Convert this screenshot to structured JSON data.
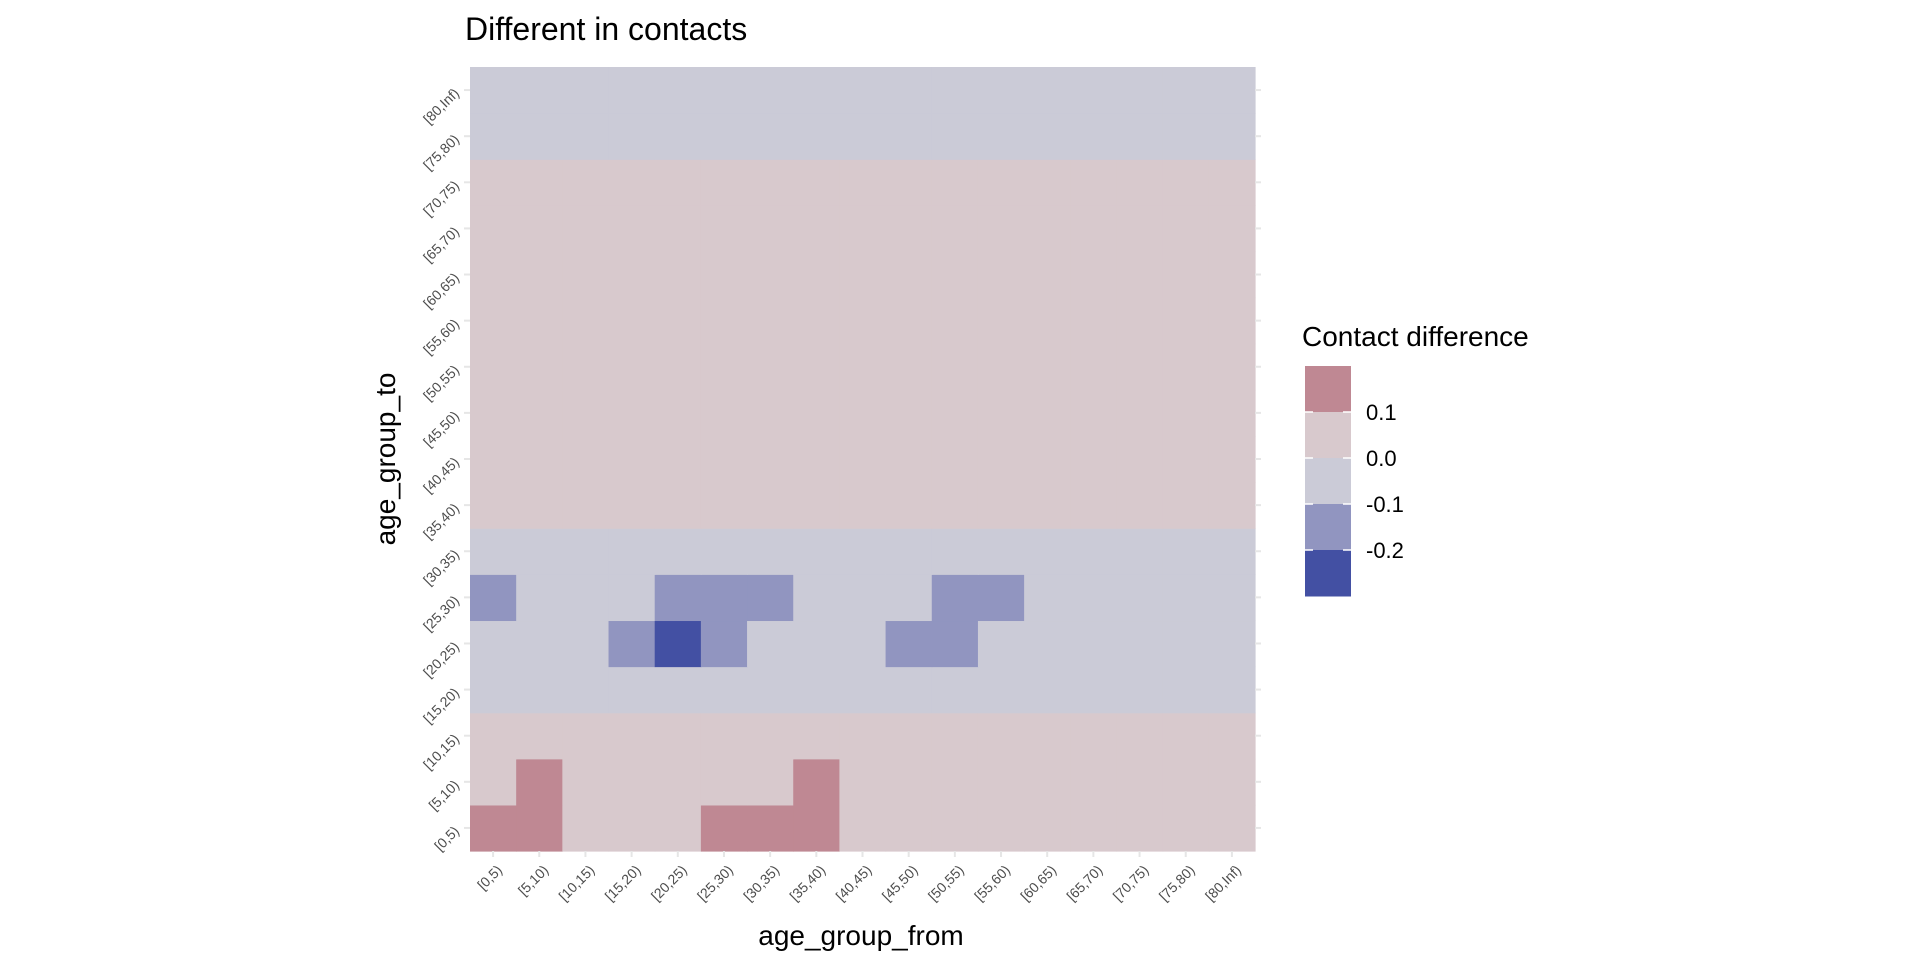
{
  "chart_data": {
    "type": "heatmap",
    "title": "Different in contacts",
    "xlabel": "age_group_from",
    "ylabel": "age_group_to",
    "categories_x": [
      "[0,5)",
      "[5,10)",
      "[10,15)",
      "[15,20)",
      "[20,25)",
      "[25,30)",
      "[30,35)",
      "[35,40)",
      "[40,45)",
      "[45,50)",
      "[50,55)",
      "[55,60)",
      "[60,65)",
      "[65,70)",
      "[70,75)",
      "[75,80)",
      "[80,Inf)"
    ],
    "categories_y": [
      "[0,5)",
      "[5,10)",
      "[10,15)",
      "[15,20)",
      "[20,25)",
      "[25,30)",
      "[30,35)",
      "[35,40)",
      "[40,45)",
      "[45,50)",
      "[50,55)",
      "[55,60)",
      "[60,65)",
      "[65,70)",
      "[70,75)",
      "[75,80)",
      "[80,Inf)"
    ],
    "values": [
      [
        0.15,
        0.15,
        0.05,
        0.05,
        0.05,
        0.15,
        0.15,
        0.15,
        0.05,
        0.05,
        0.05,
        0.05,
        0.05,
        0.05,
        0.05,
        0.05,
        0.05
      ],
      [
        0.05,
        0.15,
        0.05,
        0.05,
        0.05,
        0.05,
        0.05,
        0.15,
        0.05,
        0.05,
        0.05,
        0.05,
        0.05,
        0.05,
        0.05,
        0.05,
        0.05
      ],
      [
        0.05,
        0.05,
        0.05,
        0.05,
        0.05,
        0.05,
        0.05,
        0.05,
        0.05,
        0.05,
        0.05,
        0.05,
        0.05,
        0.05,
        0.05,
        0.05,
        0.05
      ],
      [
        -0.05,
        -0.05,
        -0.05,
        -0.05,
        -0.05,
        -0.05,
        -0.05,
        -0.05,
        -0.05,
        -0.05,
        -0.05,
        -0.05,
        -0.05,
        -0.05,
        -0.05,
        -0.05,
        -0.05
      ],
      [
        -0.05,
        -0.05,
        -0.05,
        -0.15,
        -0.25,
        -0.15,
        -0.05,
        -0.05,
        -0.05,
        -0.15,
        -0.15,
        -0.05,
        -0.05,
        -0.05,
        -0.05,
        -0.05,
        -0.05
      ],
      [
        -0.15,
        -0.05,
        -0.05,
        -0.05,
        -0.15,
        -0.15,
        -0.15,
        -0.05,
        -0.05,
        -0.05,
        -0.15,
        -0.15,
        -0.05,
        -0.05,
        -0.05,
        -0.05,
        -0.05
      ],
      [
        -0.05,
        -0.05,
        -0.05,
        -0.05,
        -0.05,
        -0.05,
        -0.05,
        -0.05,
        -0.05,
        -0.05,
        -0.05,
        -0.05,
        -0.05,
        -0.05,
        -0.05,
        -0.05,
        -0.05
      ],
      [
        0.05,
        0.05,
        0.05,
        0.05,
        0.05,
        0.05,
        0.05,
        0.05,
        0.05,
        0.05,
        0.05,
        0.05,
        0.05,
        0.05,
        0.05,
        0.05,
        0.05
      ],
      [
        0.05,
        0.05,
        0.05,
        0.05,
        0.05,
        0.05,
        0.05,
        0.05,
        0.05,
        0.05,
        0.05,
        0.05,
        0.05,
        0.05,
        0.05,
        0.05,
        0.05
      ],
      [
        0.05,
        0.05,
        0.05,
        0.05,
        0.05,
        0.05,
        0.05,
        0.05,
        0.05,
        0.05,
        0.05,
        0.05,
        0.05,
        0.05,
        0.05,
        0.05,
        0.05
      ],
      [
        0.05,
        0.05,
        0.05,
        0.05,
        0.05,
        0.05,
        0.05,
        0.05,
        0.05,
        0.05,
        0.05,
        0.05,
        0.05,
        0.05,
        0.05,
        0.05,
        0.05
      ],
      [
        0.05,
        0.05,
        0.05,
        0.05,
        0.05,
        0.05,
        0.05,
        0.05,
        0.05,
        0.05,
        0.05,
        0.05,
        0.05,
        0.05,
        0.05,
        0.05,
        0.05
      ],
      [
        0.05,
        0.05,
        0.05,
        0.05,
        0.05,
        0.05,
        0.05,
        0.05,
        0.05,
        0.05,
        0.05,
        0.05,
        0.05,
        0.05,
        0.05,
        0.05,
        0.05
      ],
      [
        0.05,
        0.05,
        0.05,
        0.05,
        0.05,
        0.05,
        0.05,
        0.05,
        0.05,
        0.05,
        0.05,
        0.05,
        0.05,
        0.05,
        0.05,
        0.05,
        0.05
      ],
      [
        0.05,
        0.05,
        0.05,
        0.05,
        0.05,
        0.05,
        0.05,
        0.05,
        0.05,
        0.05,
        0.05,
        0.05,
        0.05,
        0.05,
        0.05,
        0.05,
        0.05
      ],
      [
        -0.05,
        -0.05,
        -0.05,
        -0.05,
        -0.05,
        -0.05,
        -0.05,
        -0.05,
        -0.05,
        -0.05,
        -0.05,
        -0.05,
        -0.05,
        -0.05,
        -0.05,
        -0.05,
        -0.05
      ],
      [
        -0.05,
        -0.05,
        -0.05,
        -0.05,
        -0.05,
        -0.05,
        -0.05,
        -0.05,
        -0.05,
        -0.05,
        -0.05,
        -0.05,
        -0.05,
        -0.05,
        -0.05,
        -0.05,
        -0.05
      ]
    ],
    "legend": {
      "title": "Contact difference",
      "placement": "right",
      "bins": [
        {
          "min": 0.1,
          "max": 0.2,
          "color": "#bf8893"
        },
        {
          "min": 0.0,
          "max": 0.1,
          "color": "#d8c9cd"
        },
        {
          "min": -0.1,
          "max": 0.0,
          "color": "#cbcbd7"
        },
        {
          "min": -0.2,
          "max": -0.1,
          "color": "#9195c0"
        },
        {
          "min": -0.3,
          "max": -0.2,
          "color": "#4350a3"
        }
      ],
      "labels": [
        "0.1",
        "0.0",
        "-0.1",
        "-0.2"
      ]
    }
  }
}
